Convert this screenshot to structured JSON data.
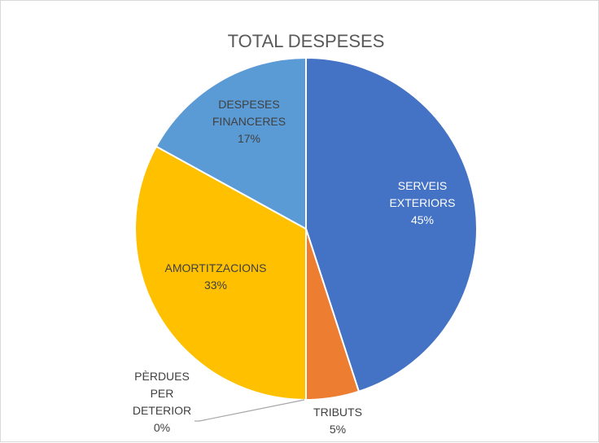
{
  "chart_data": {
    "type": "pie",
    "title": "TOTAL DESPESES",
    "slices": [
      {
        "label": [
          "SERVEIS",
          "EXTERIORS"
        ],
        "percent_label": "45%",
        "value": 45,
        "color": "#4472C4",
        "label_color": "#ffffff"
      },
      {
        "label": [
          "TRIBUTS"
        ],
        "percent_label": "5%",
        "value": 5,
        "color": "#ED7D31",
        "label_color": "#404040"
      },
      {
        "label": [
          "PÈRDUES",
          "PER",
          "DETERIOR"
        ],
        "percent_label": "0%",
        "value": 0,
        "color": "#A5A5A5",
        "label_color": "#404040"
      },
      {
        "label": [
          "AMORTITZACIONS"
        ],
        "percent_label": "33%",
        "value": 33,
        "color": "#FFC000",
        "label_color": "#404040"
      },
      {
        "label": [
          "DESPESES",
          "FINANCERES"
        ],
        "percent_label": "17%",
        "value": 17,
        "color": "#5B9BD5",
        "label_color": "#404040"
      }
    ]
  }
}
